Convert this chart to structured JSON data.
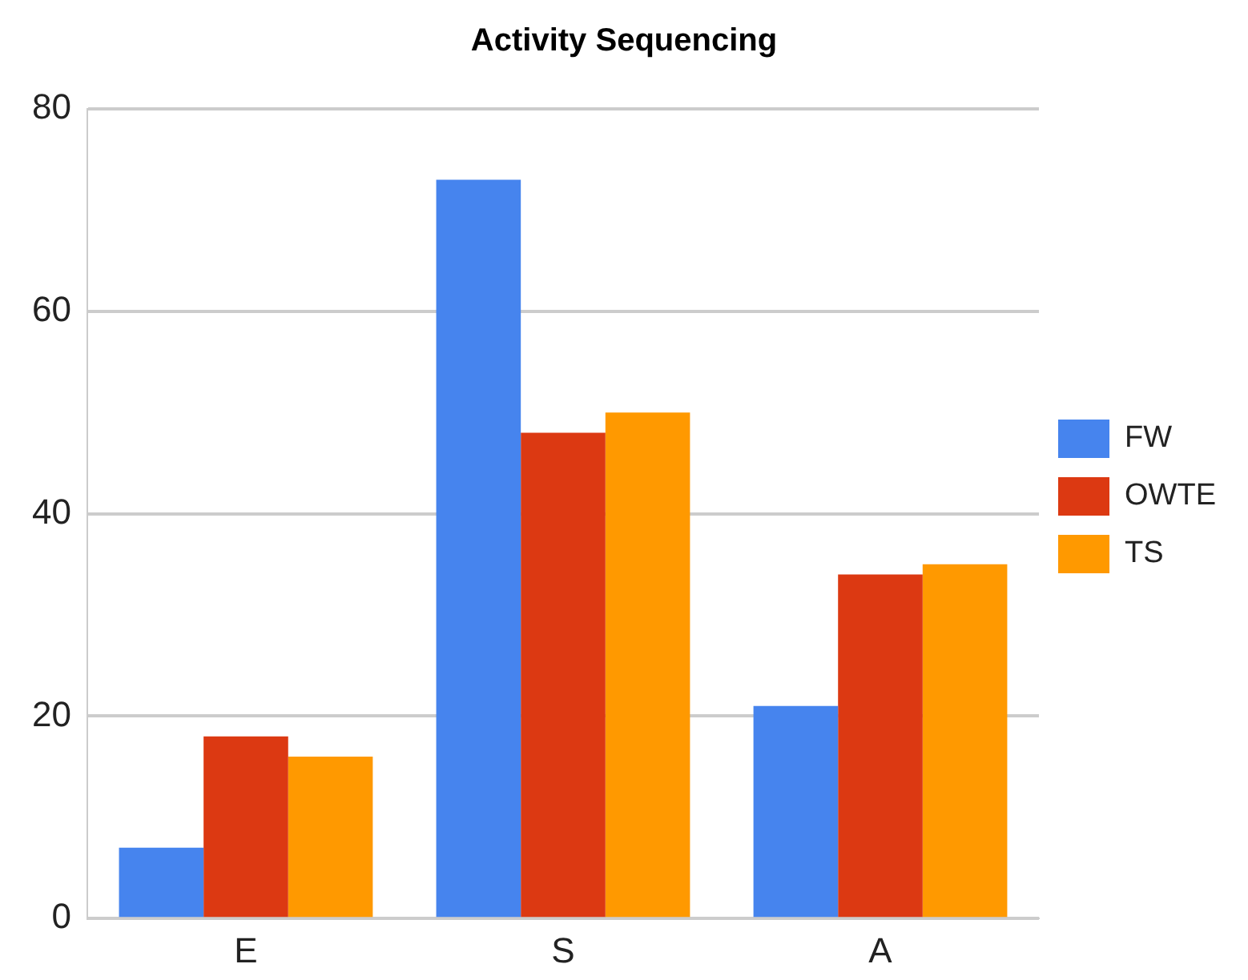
{
  "chart_data": {
    "type": "bar",
    "title": "Activity Sequencing",
    "categories": [
      "E",
      "S",
      "A"
    ],
    "series": [
      {
        "name": "FW",
        "color": "#4684ee",
        "values": [
          7,
          73,
          21
        ]
      },
      {
        "name": "OWTE",
        "color": "#dc3912",
        "values": [
          18,
          48,
          34
        ]
      },
      {
        "name": "TS",
        "color": "#ff9900",
        "values": [
          16,
          50,
          35
        ]
      }
    ],
    "ylim": [
      0,
      80
    ],
    "yticks": [
      0,
      20,
      40,
      60,
      80
    ],
    "grid": "y",
    "legend": "right"
  }
}
